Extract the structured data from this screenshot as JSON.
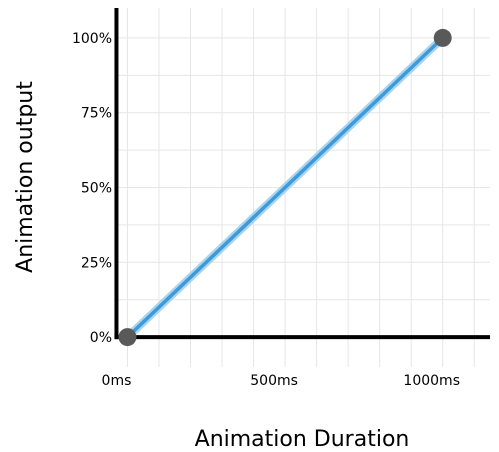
{
  "chart_data": {
    "type": "line",
    "xlabel": "Animation Duration",
    "ylabel": "Animation output",
    "x_ticks": [
      {
        "value": 0,
        "label": "0ms"
      },
      {
        "value": 500,
        "label": "500ms"
      },
      {
        "value": 1000,
        "label": "1000ms"
      }
    ],
    "y_ticks": [
      {
        "value": 0,
        "label": "0%"
      },
      {
        "value": 25,
        "label": "25%"
      },
      {
        "value": 50,
        "label": "50%"
      },
      {
        "value": 75,
        "label": "75%"
      },
      {
        "value": 100,
        "label": "100%"
      }
    ],
    "xlim": [
      -30,
      1150
    ],
    "ylim": [
      -10,
      110
    ],
    "grid": true,
    "series": [
      {
        "color": "#3e9ad9",
        "points": [
          [
            0,
            0
          ],
          [
            1000,
            100
          ]
        ]
      }
    ],
    "markers": [
      {
        "x": 0,
        "y": 0,
        "color": "#595959"
      },
      {
        "x": 1000,
        "y": 100,
        "color": "#595959"
      }
    ]
  }
}
